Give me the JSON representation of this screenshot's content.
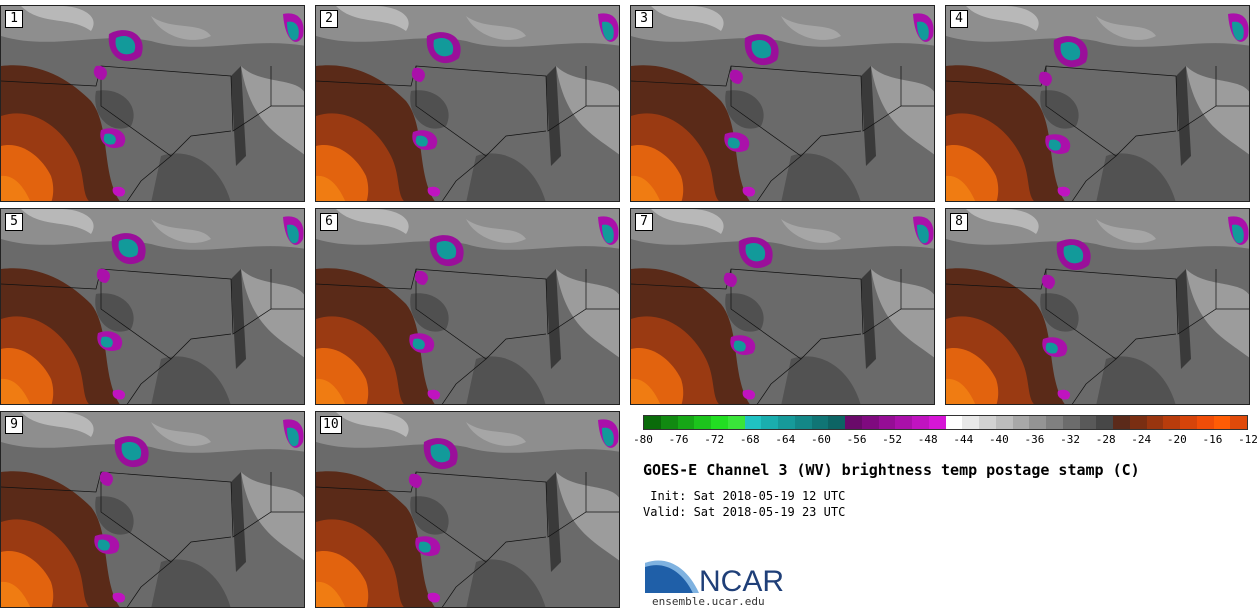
{
  "panels": [
    {
      "label": "1"
    },
    {
      "label": "2"
    },
    {
      "label": "3"
    },
    {
      "label": "4"
    },
    {
      "label": "5"
    },
    {
      "label": "6"
    },
    {
      "label": "7"
    },
    {
      "label": "8"
    },
    {
      "label": "9"
    },
    {
      "label": "10"
    }
  ],
  "colorbar": {
    "colors": [
      "#0a6b0a",
      "#118a11",
      "#16a716",
      "#1cc41c",
      "#22de22",
      "#3ae53a",
      "#20c2c2",
      "#1aaeae",
      "#169a9a",
      "#138787",
      "#107575",
      "#0d6464",
      "#6a0a6a",
      "#7f0a7f",
      "#950d95",
      "#aa10aa",
      "#c013c0",
      "#d616d6",
      "#ffffff",
      "#e8e8e8",
      "#d2d2d2",
      "#bdbdbd",
      "#a8a8a8",
      "#949494",
      "#808080",
      "#6c6c6c",
      "#595959",
      "#474747",
      "#5b2a1a",
      "#7a2e12",
      "#99350f",
      "#b83c0c",
      "#d6440a",
      "#f04d08",
      "#ff5c05",
      "#e04a0a"
    ],
    "ticks": [
      "-80",
      "-76",
      "-72",
      "-68",
      "-64",
      "-60",
      "-56",
      "-52",
      "-48",
      "-44",
      "-40",
      "-36",
      "-32",
      "-28",
      "-24",
      "-20",
      "-16",
      "-12"
    ]
  },
  "title": "GOES-E Channel 3 (WV) brightness temp postage stamp (C)",
  "init_label": " Init: Sat 2018-05-19 12 UTC",
  "valid_label": "Valid: Sat 2018-05-19 23 UTC",
  "logo_text": "NCAR",
  "site_url": "ensemble.ucar.edu"
}
